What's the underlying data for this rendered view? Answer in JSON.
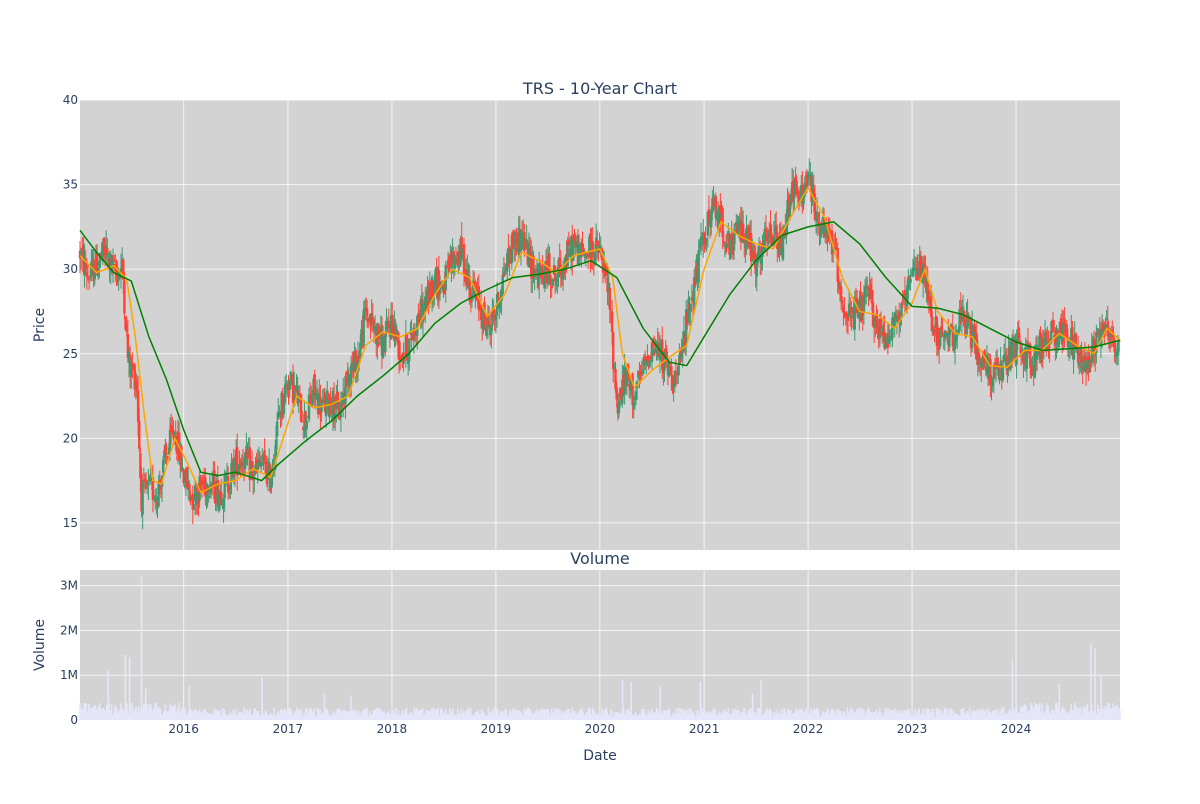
{
  "chart_data": [
    {
      "type": "candlestick",
      "title": "TRS - 10-Year Chart",
      "ylabel": "Price",
      "xlim": [
        "2015-01-02",
        "2024-12-31"
      ],
      "ylim": [
        13.4,
        40
      ],
      "yticks": [
        15,
        20,
        25,
        30,
        35,
        40
      ],
      "xticks": [
        "2016",
        "2017",
        "2018",
        "2019",
        "2020",
        "2021",
        "2022",
        "2023",
        "2024"
      ],
      "grid": true,
      "up_color": "#3d9970",
      "down_color": "#ff4136",
      "close_path": [
        [
          "2015-01-02",
          31.0
        ],
        [
          "2015-02-01",
          29.5
        ],
        [
          "2015-03-01",
          30.3
        ],
        [
          "2015-04-01",
          31.0
        ],
        [
          "2015-05-01",
          29.8
        ],
        [
          "2015-06-01",
          30.0
        ],
        [
          "2015-06-20",
          24.5
        ],
        [
          "2015-07-20",
          23.5
        ],
        [
          "2015-08-05",
          16.5
        ],
        [
          "2015-09-01",
          17.0
        ],
        [
          "2015-10-01",
          16.8
        ],
        [
          "2015-11-01",
          19.0
        ],
        [
          "2015-12-01",
          20.5
        ],
        [
          "2016-01-01",
          17.8
        ],
        [
          "2016-02-01",
          16.5
        ],
        [
          "2016-03-01",
          17.2
        ],
        [
          "2016-04-01",
          17.5
        ],
        [
          "2016-05-01",
          16.8
        ],
        [
          "2016-06-01",
          17.2
        ],
        [
          "2016-07-01",
          18.6
        ],
        [
          "2016-08-01",
          18.9
        ],
        [
          "2016-09-01",
          17.8
        ],
        [
          "2016-10-01",
          18.6
        ],
        [
          "2016-11-01",
          17.6
        ],
        [
          "2016-12-01",
          21.5
        ],
        [
          "2017-01-01",
          23.5
        ],
        [
          "2017-02-01",
          22.5
        ],
        [
          "2017-03-01",
          21.0
        ],
        [
          "2017-04-01",
          22.8
        ],
        [
          "2017-05-01",
          21.8
        ],
        [
          "2017-06-01",
          22.3
        ],
        [
          "2017-07-01",
          21.5
        ],
        [
          "2017-08-01",
          24.0
        ],
        [
          "2017-09-01",
          24.5
        ],
        [
          "2017-10-01",
          27.5
        ],
        [
          "2017-11-01",
          26.5
        ],
        [
          "2017-12-01",
          25.5
        ],
        [
          "2018-01-01",
          27.0
        ],
        [
          "2018-02-01",
          25.0
        ],
        [
          "2018-03-01",
          25.5
        ],
        [
          "2018-04-01",
          27.0
        ],
        [
          "2018-05-01",
          28.0
        ],
        [
          "2018-06-01",
          29.5
        ],
        [
          "2018-07-01",
          29.0
        ],
        [
          "2018-08-01",
          30.5
        ],
        [
          "2018-09-01",
          31.0
        ],
        [
          "2018-10-01",
          29.0
        ],
        [
          "2018-11-01",
          28.0
        ],
        [
          "2018-12-01",
          26.5
        ],
        [
          "2019-01-01",
          27.5
        ],
        [
          "2019-02-01",
          30.0
        ],
        [
          "2019-03-01",
          31.5
        ],
        [
          "2019-04-01",
          32.0
        ],
        [
          "2019-05-01",
          30.5
        ],
        [
          "2019-06-01",
          29.5
        ],
        [
          "2019-07-01",
          30.0
        ],
        [
          "2019-08-01",
          29.5
        ],
        [
          "2019-09-01",
          30.5
        ],
        [
          "2019-10-01",
          31.5
        ],
        [
          "2019-11-01",
          30.8
        ],
        [
          "2019-12-01",
          31.2
        ],
        [
          "2020-01-01",
          31.0
        ],
        [
          "2020-02-01",
          28.5
        ],
        [
          "2020-03-01",
          22.0
        ],
        [
          "2020-04-01",
          23.5
        ],
        [
          "2020-05-01",
          22.5
        ],
        [
          "2020-06-01",
          24.0
        ],
        [
          "2020-07-01",
          25.5
        ],
        [
          "2020-08-01",
          25.0
        ],
        [
          "2020-09-01",
          24.0
        ],
        [
          "2020-10-01",
          23.5
        ],
        [
          "2020-11-01",
          27.0
        ],
        [
          "2020-12-01",
          29.5
        ],
        [
          "2021-01-01",
          32.0
        ],
        [
          "2021-02-01",
          33.5
        ],
        [
          "2021-03-01",
          33.0
        ],
        [
          "2021-04-01",
          31.0
        ],
        [
          "2021-05-01",
          32.5
        ],
        [
          "2021-06-01",
          32.0
        ],
        [
          "2021-07-01",
          30.0
        ],
        [
          "2021-08-01",
          31.5
        ],
        [
          "2021-09-01",
          32.0
        ],
        [
          "2021-10-01",
          31.0
        ],
        [
          "2021-11-01",
          35.0
        ],
        [
          "2021-12-01",
          34.0
        ],
        [
          "2022-01-01",
          35.5
        ],
        [
          "2022-02-01",
          33.0
        ],
        [
          "2022-03-01",
          32.0
        ],
        [
          "2022-04-01",
          31.5
        ],
        [
          "2022-05-01",
          28.0
        ],
        [
          "2022-06-01",
          27.0
        ],
        [
          "2022-07-01",
          27.5
        ],
        [
          "2022-08-01",
          28.5
        ],
        [
          "2022-09-01",
          26.5
        ],
        [
          "2022-10-01",
          26.0
        ],
        [
          "2022-11-01",
          27.0
        ],
        [
          "2022-12-01",
          27.5
        ],
        [
          "2023-01-01",
          29.5
        ],
        [
          "2023-02-01",
          30.5
        ],
        [
          "2023-03-01",
          28.0
        ],
        [
          "2023-04-01",
          26.0
        ],
        [
          "2023-05-01",
          25.5
        ],
        [
          "2023-06-01",
          26.5
        ],
        [
          "2023-07-01",
          27.0
        ],
        [
          "2023-08-01",
          26.0
        ],
        [
          "2023-09-01",
          24.5
        ],
        [
          "2023-10-01",
          24.0
        ],
        [
          "2023-11-01",
          23.8
        ],
        [
          "2023-12-01",
          24.5
        ],
        [
          "2024-01-01",
          25.5
        ],
        [
          "2024-02-01",
          25.0
        ],
        [
          "2024-03-01",
          24.5
        ],
        [
          "2024-04-01",
          25.5
        ],
        [
          "2024-05-01",
          26.0
        ],
        [
          "2024-06-01",
          26.5
        ],
        [
          "2024-07-01",
          26.0
        ],
        [
          "2024-08-01",
          25.0
        ],
        [
          "2024-09-01",
          24.5
        ],
        [
          "2024-10-01",
          25.5
        ],
        [
          "2024-11-01",
          27.0
        ],
        [
          "2024-12-01",
          26.0
        ],
        [
          "2024-12-31",
          24.8
        ]
      ],
      "overlays": [
        {
          "color": "#ffa500",
          "points": [
            [
              "2015-01-02",
              30.8
            ],
            [
              "2015-03-01",
              29.8
            ],
            [
              "2015-05-01",
              30.2
            ],
            [
              "2015-06-15",
              29.4
            ],
            [
              "2015-07-15",
              26.0
            ],
            [
              "2015-08-15",
              21.5
            ],
            [
              "2015-09-15",
              17.5
            ],
            [
              "2015-10-15",
              17.3
            ],
            [
              "2015-12-01",
              20.0
            ],
            [
              "2016-01-15",
              18.5
            ],
            [
              "2016-03-01",
              16.8
            ],
            [
              "2016-05-01",
              17.3
            ],
            [
              "2016-07-01",
              17.5
            ],
            [
              "2016-09-01",
              18.2
            ],
            [
              "2016-11-01",
              17.7
            ],
            [
              "2016-12-15",
              20.0
            ],
            [
              "2017-02-01",
              22.5
            ],
            [
              "2017-04-01",
              21.8
            ],
            [
              "2017-06-01",
              22.0
            ],
            [
              "2017-08-01",
              22.5
            ],
            [
              "2017-10-01",
              25.5
            ],
            [
              "2017-12-01",
              26.3
            ],
            [
              "2018-02-01",
              26.0
            ],
            [
              "2018-04-01",
              26.5
            ],
            [
              "2018-06-01",
              28.5
            ],
            [
              "2018-08-01",
              30.0
            ],
            [
              "2018-10-01",
              29.5
            ],
            [
              "2018-12-01",
              27.2
            ],
            [
              "2019-02-01",
              28.5
            ],
            [
              "2019-04-01",
              31.0
            ],
            [
              "2019-06-01",
              30.5
            ],
            [
              "2019-08-01",
              29.8
            ],
            [
              "2019-10-01",
              30.8
            ],
            [
              "2020-01-01",
              31.2
            ],
            [
              "2020-02-15",
              29.5
            ],
            [
              "2020-03-20",
              25.0
            ],
            [
              "2020-05-01",
              23.0
            ],
            [
              "2020-07-01",
              24.0
            ],
            [
              "2020-09-01",
              24.8
            ],
            [
              "2020-11-01",
              25.5
            ],
            [
              "2021-01-01",
              30.0
            ],
            [
              "2021-03-01",
              32.8
            ],
            [
              "2021-05-01",
              32.0
            ],
            [
              "2021-07-01",
              31.5
            ],
            [
              "2021-09-01",
              31.2
            ],
            [
              "2021-11-15",
              33.5
            ],
            [
              "2022-01-01",
              34.8
            ],
            [
              "2022-03-01",
              33.0
            ],
            [
              "2022-05-01",
              29.5
            ],
            [
              "2022-07-01",
              27.5
            ],
            [
              "2022-09-01",
              27.3
            ],
            [
              "2022-11-01",
              26.5
            ],
            [
              "2023-01-01",
              28.0
            ],
            [
              "2023-02-15",
              30.0
            ],
            [
              "2023-04-01",
              27.5
            ],
            [
              "2023-06-01",
              26.2
            ],
            [
              "2023-08-01",
              26.0
            ],
            [
              "2023-10-01",
              24.3
            ],
            [
              "2023-12-01",
              24.2
            ],
            [
              "2024-02-01",
              25.2
            ],
            [
              "2024-04-01",
              25.2
            ],
            [
              "2024-06-01",
              26.2
            ],
            [
              "2024-08-01",
              25.5
            ],
            [
              "2024-10-01",
              25.0
            ],
            [
              "2024-11-15",
              26.5
            ],
            [
              "2024-12-31",
              25.8
            ]
          ]
        },
        {
          "color": "#008000",
          "points": [
            [
              "2015-01-02",
              32.3
            ],
            [
              "2015-03-01",
              31.0
            ],
            [
              "2015-05-01",
              29.8
            ],
            [
              "2015-07-01",
              29.3
            ],
            [
              "2015-09-01",
              26.0
            ],
            [
              "2015-11-01",
              23.5
            ],
            [
              "2016-01-01",
              20.5
            ],
            [
              "2016-03-01",
              18.0
            ],
            [
              "2016-05-01",
              17.8
            ],
            [
              "2016-07-01",
              18.0
            ],
            [
              "2016-10-01",
              17.5
            ],
            [
              "2016-12-01",
              18.5
            ],
            [
              "2017-03-01",
              19.8
            ],
            [
              "2017-06-01",
              21.0
            ],
            [
              "2017-09-01",
              22.5
            ],
            [
              "2017-12-01",
              23.7
            ],
            [
              "2018-03-01",
              25.0
            ],
            [
              "2018-06-01",
              26.8
            ],
            [
              "2018-09-01",
              28.0
            ],
            [
              "2018-12-01",
              28.8
            ],
            [
              "2019-03-01",
              29.5
            ],
            [
              "2019-06-01",
              29.7
            ],
            [
              "2019-09-01",
              30.0
            ],
            [
              "2019-12-01",
              30.5
            ],
            [
              "2020-03-01",
              29.5
            ],
            [
              "2020-06-01",
              26.5
            ],
            [
              "2020-09-01",
              24.5
            ],
            [
              "2020-11-01",
              24.3
            ],
            [
              "2021-01-01",
              26.0
            ],
            [
              "2021-04-01",
              28.5
            ],
            [
              "2021-07-01",
              30.5
            ],
            [
              "2021-10-01",
              32.0
            ],
            [
              "2022-01-01",
              32.5
            ],
            [
              "2022-04-01",
              32.8
            ],
            [
              "2022-07-01",
              31.5
            ],
            [
              "2022-10-01",
              29.5
            ],
            [
              "2023-01-01",
              27.8
            ],
            [
              "2023-04-01",
              27.7
            ],
            [
              "2023-07-01",
              27.3
            ],
            [
              "2023-10-01",
              26.5
            ],
            [
              "2024-01-01",
              25.7
            ],
            [
              "2024-04-01",
              25.2
            ],
            [
              "2024-07-01",
              25.3
            ],
            [
              "2024-10-01",
              25.4
            ],
            [
              "2024-12-31",
              25.8
            ]
          ]
        }
      ]
    },
    {
      "type": "bar",
      "title": "Volume",
      "xlabel": "Date",
      "ylabel": "Volume",
      "ylim": [
        0,
        3350000
      ],
      "yticks": [
        0,
        1000000,
        2000000,
        3000000
      ],
      "ytick_labels": [
        "0",
        "1M",
        "2M",
        "3M"
      ],
      "xticks": [
        "2016",
        "2017",
        "2018",
        "2019",
        "2020",
        "2021",
        "2022",
        "2023",
        "2024"
      ],
      "grid": true,
      "bar_color": "#e6e6fa",
      "spikes": [
        [
          "2015-04-10",
          1100000
        ],
        [
          "2015-06-10",
          1450000
        ],
        [
          "2015-06-25",
          1400000
        ],
        [
          "2015-08-05",
          3200000
        ],
        [
          "2015-08-20",
          700000
        ],
        [
          "2016-01-20",
          750000
        ],
        [
          "2016-10-01",
          950000
        ],
        [
          "2017-05-10",
          600000
        ],
        [
          "2017-08-10",
          550000
        ],
        [
          "2020-03-20",
          900000
        ],
        [
          "2020-04-20",
          850000
        ],
        [
          "2020-08-01",
          750000
        ],
        [
          "2020-12-20",
          850000
        ],
        [
          "2021-06-20",
          600000
        ],
        [
          "2021-07-20",
          900000
        ],
        [
          "2023-12-20",
          1350000
        ],
        [
          "2024-06-01",
          800000
        ],
        [
          "2024-09-20",
          1700000
        ],
        [
          "2024-10-05",
          1600000
        ],
        [
          "2024-10-25",
          1000000
        ]
      ]
    }
  ]
}
